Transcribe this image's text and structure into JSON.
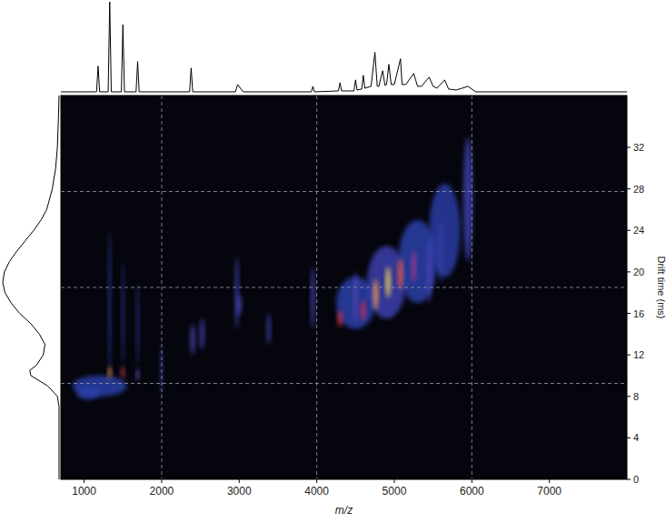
{
  "chart_data": {
    "type": "heatmap",
    "x_label": "m/z",
    "y_label": "Drift time (ms)",
    "xlim": [
      700,
      8000
    ],
    "ylim": [
      0,
      37
    ],
    "xticks": [
      1000,
      2000,
      3000,
      4000,
      5000,
      6000,
      7000
    ],
    "yticks": [
      0,
      4,
      8,
      12,
      16,
      20,
      24,
      28,
      32
    ],
    "grid": true,
    "grid_x": [
      2000,
      4000,
      6000
    ],
    "grid_y": [
      9.25,
      18.5,
      27.75
    ],
    "zlim": [
      0,
      1
    ],
    "spots": [
      {
        "mz": 4500,
        "drift": 17,
        "mz_width": 500,
        "drift_width": 5,
        "intensity": 0.3
      },
      {
        "mz": 4900,
        "drift": 19,
        "mz_width": 500,
        "drift_width": 7,
        "intensity": 0.35
      },
      {
        "mz": 5300,
        "drift": 21,
        "mz_width": 500,
        "drift_width": 8,
        "intensity": 0.3
      },
      {
        "mz": 5650,
        "drift": 24,
        "mz_width": 400,
        "drift_width": 9,
        "intensity": 0.28
      },
      {
        "mz": 5950,
        "drift": 27,
        "mz_width": 120,
        "drift_width": 12,
        "intensity": 0.35
      },
      {
        "mz": 1200,
        "drift": 9,
        "mz_width": 700,
        "drift_width": 2,
        "intensity": 0.3
      },
      {
        "mz": 1050,
        "drift": 8.3,
        "mz_width": 300,
        "drift_width": 1.2,
        "intensity": 0.3
      },
      {
        "mz": 1330,
        "drift": 17,
        "mz_width": 30,
        "drift_width": 14,
        "intensity": 0.25
      },
      {
        "mz": 1500,
        "drift": 16,
        "mz_width": 30,
        "drift_width": 10,
        "intensity": 0.2
      },
      {
        "mz": 1690,
        "drift": 15,
        "mz_width": 30,
        "drift_width": 8,
        "intensity": 0.2
      },
      {
        "mz": 2000,
        "drift": 10.5,
        "mz_width": 30,
        "drift_width": 5,
        "intensity": 0.2
      },
      {
        "mz": 1330,
        "drift": 10.3,
        "mz_width": 40,
        "drift_width": 1.2,
        "intensity": 0.95
      },
      {
        "mz": 1500,
        "drift": 10.3,
        "mz_width": 40,
        "drift_width": 1.2,
        "intensity": 0.8
      },
      {
        "mz": 1690,
        "drift": 10.1,
        "mz_width": 40,
        "drift_width": 1.2,
        "intensity": 0.55
      },
      {
        "mz": 2400,
        "drift": 13.5,
        "mz_width": 60,
        "drift_width": 3,
        "intensity": 0.4
      },
      {
        "mz": 2520,
        "drift": 14,
        "mz_width": 60,
        "drift_width": 3,
        "intensity": 0.35
      },
      {
        "mz": 2970,
        "drift": 18,
        "mz_width": 50,
        "drift_width": 7,
        "intensity": 0.35
      },
      {
        "mz": 3000,
        "drift": 16.8,
        "mz_width": 60,
        "drift_width": 2,
        "intensity": 0.4
      },
      {
        "mz": 3380,
        "drift": 14.5,
        "mz_width": 50,
        "drift_width": 3,
        "intensity": 0.35
      },
      {
        "mz": 3950,
        "drift": 17.5,
        "mz_width": 50,
        "drift_width": 6,
        "intensity": 0.4
      },
      {
        "mz": 5450,
        "drift": 20,
        "mz_width": 60,
        "drift_width": 6,
        "intensity": 0.4
      },
      {
        "mz": 5600,
        "drift": 22,
        "mz_width": 50,
        "drift_width": 6,
        "intensity": 0.35
      },
      {
        "mz": 4300,
        "drift": 15.5,
        "mz_width": 60,
        "drift_width": 1.5,
        "intensity": 0.8
      },
      {
        "mz": 4500,
        "drift": 17.5,
        "mz_width": 50,
        "drift_width": 5,
        "intensity": 0.45
      },
      {
        "mz": 4600,
        "drift": 16.3,
        "mz_width": 60,
        "drift_width": 2,
        "intensity": 0.75
      },
      {
        "mz": 4760,
        "drift": 17.8,
        "mz_width": 60,
        "drift_width": 3,
        "intensity": 0.95
      },
      {
        "mz": 4920,
        "drift": 19,
        "mz_width": 60,
        "drift_width": 3,
        "intensity": 1.0
      },
      {
        "mz": 5080,
        "drift": 19.8,
        "mz_width": 60,
        "drift_width": 3,
        "intensity": 0.9
      },
      {
        "mz": 5250,
        "drift": 20.5,
        "mz_width": 60,
        "drift_width": 3,
        "intensity": 0.65
      }
    ],
    "spectrum": {
      "ylim": [
        0,
        100
      ],
      "x": [
        700,
        1160,
        1180,
        1200,
        1310,
        1330,
        1350,
        1480,
        1500,
        1520,
        1670,
        1690,
        1710,
        2360,
        2380,
        2400,
        2950,
        2980,
        3050,
        3930,
        3950,
        3970,
        4280,
        4300,
        4320,
        4480,
        4500,
        4520,
        4580,
        4600,
        4620,
        4700,
        4750,
        4780,
        4800,
        4850,
        4880,
        4900,
        4930,
        4960,
        5000,
        5080,
        5100,
        5150,
        5250,
        5300,
        5350,
        5450,
        5500,
        5550,
        5650,
        5700,
        5800,
        5950,
        6050,
        8000
      ],
      "values": [
        2,
        2,
        30,
        2,
        2,
        100,
        2,
        2,
        75,
        2,
        2,
        35,
        2,
        2,
        28,
        2,
        2,
        10,
        2,
        2,
        8,
        2,
        3,
        12,
        3,
        3,
        15,
        4,
        5,
        20,
        6,
        8,
        45,
        8,
        8,
        25,
        9,
        10,
        32,
        10,
        10,
        38,
        10,
        10,
        22,
        8,
        8,
        18,
        8,
        6,
        15,
        5,
        4,
        8,
        2,
        2
      ]
    },
    "mobilogram": {
      "xlim": [
        0,
        100
      ],
      "drift": [
        0,
        7,
        8,
        9,
        10,
        10.5,
        11,
        12,
        13,
        14,
        15,
        16,
        17,
        18,
        19,
        20,
        21,
        22,
        23,
        24,
        25,
        26,
        28,
        30,
        32,
        35,
        37
      ],
      "values": [
        0,
        0,
        3,
        20,
        50,
        52,
        40,
        28,
        25,
        35,
        50,
        70,
        85,
        96,
        100,
        97,
        88,
        75,
        60,
        45,
        32,
        22,
        12,
        6,
        3,
        1,
        0
      ]
    }
  }
}
